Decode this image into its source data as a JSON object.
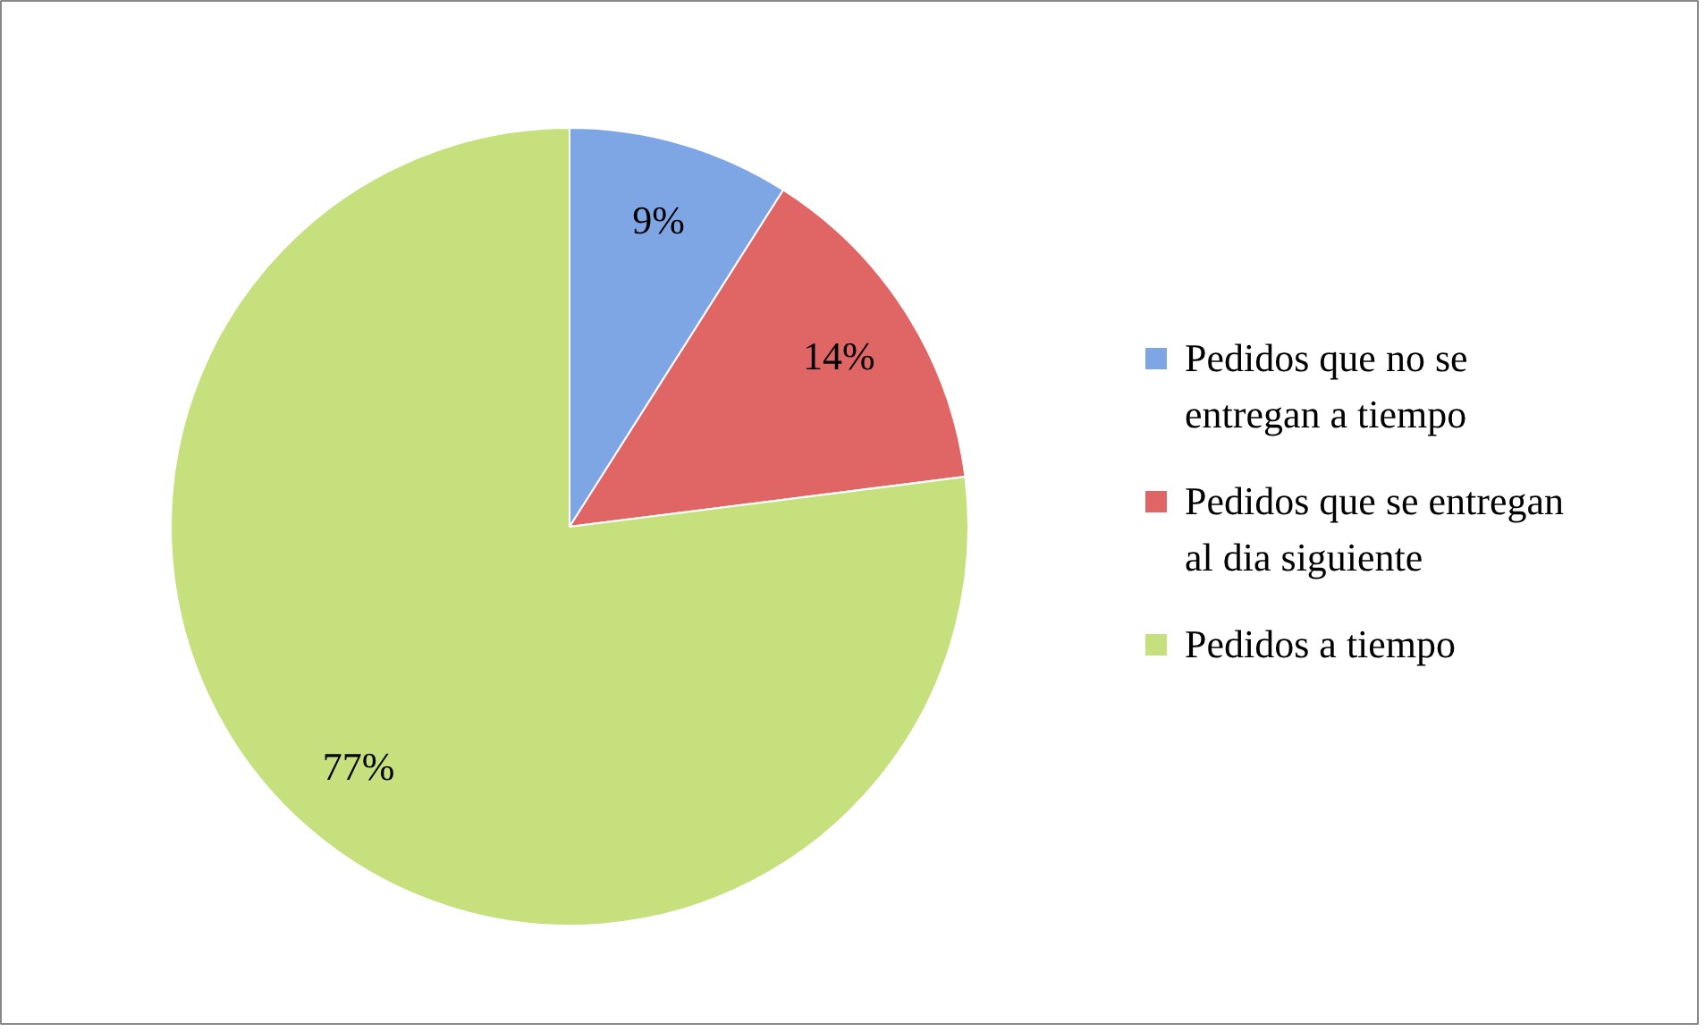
{
  "chart_data": {
    "type": "pie",
    "categories": [
      "Pedidos que no se entregan a tiempo",
      "Pedidos que se entregan al dia siguiente",
      "Pedidos a tiempo"
    ],
    "values": [
      9,
      14,
      77
    ],
    "colors": [
      "#7fa6e4",
      "#e06666",
      "#c6e07e"
    ],
    "value_labels": [
      "9%",
      "14%",
      "77%"
    ],
    "legend": "right"
  }
}
